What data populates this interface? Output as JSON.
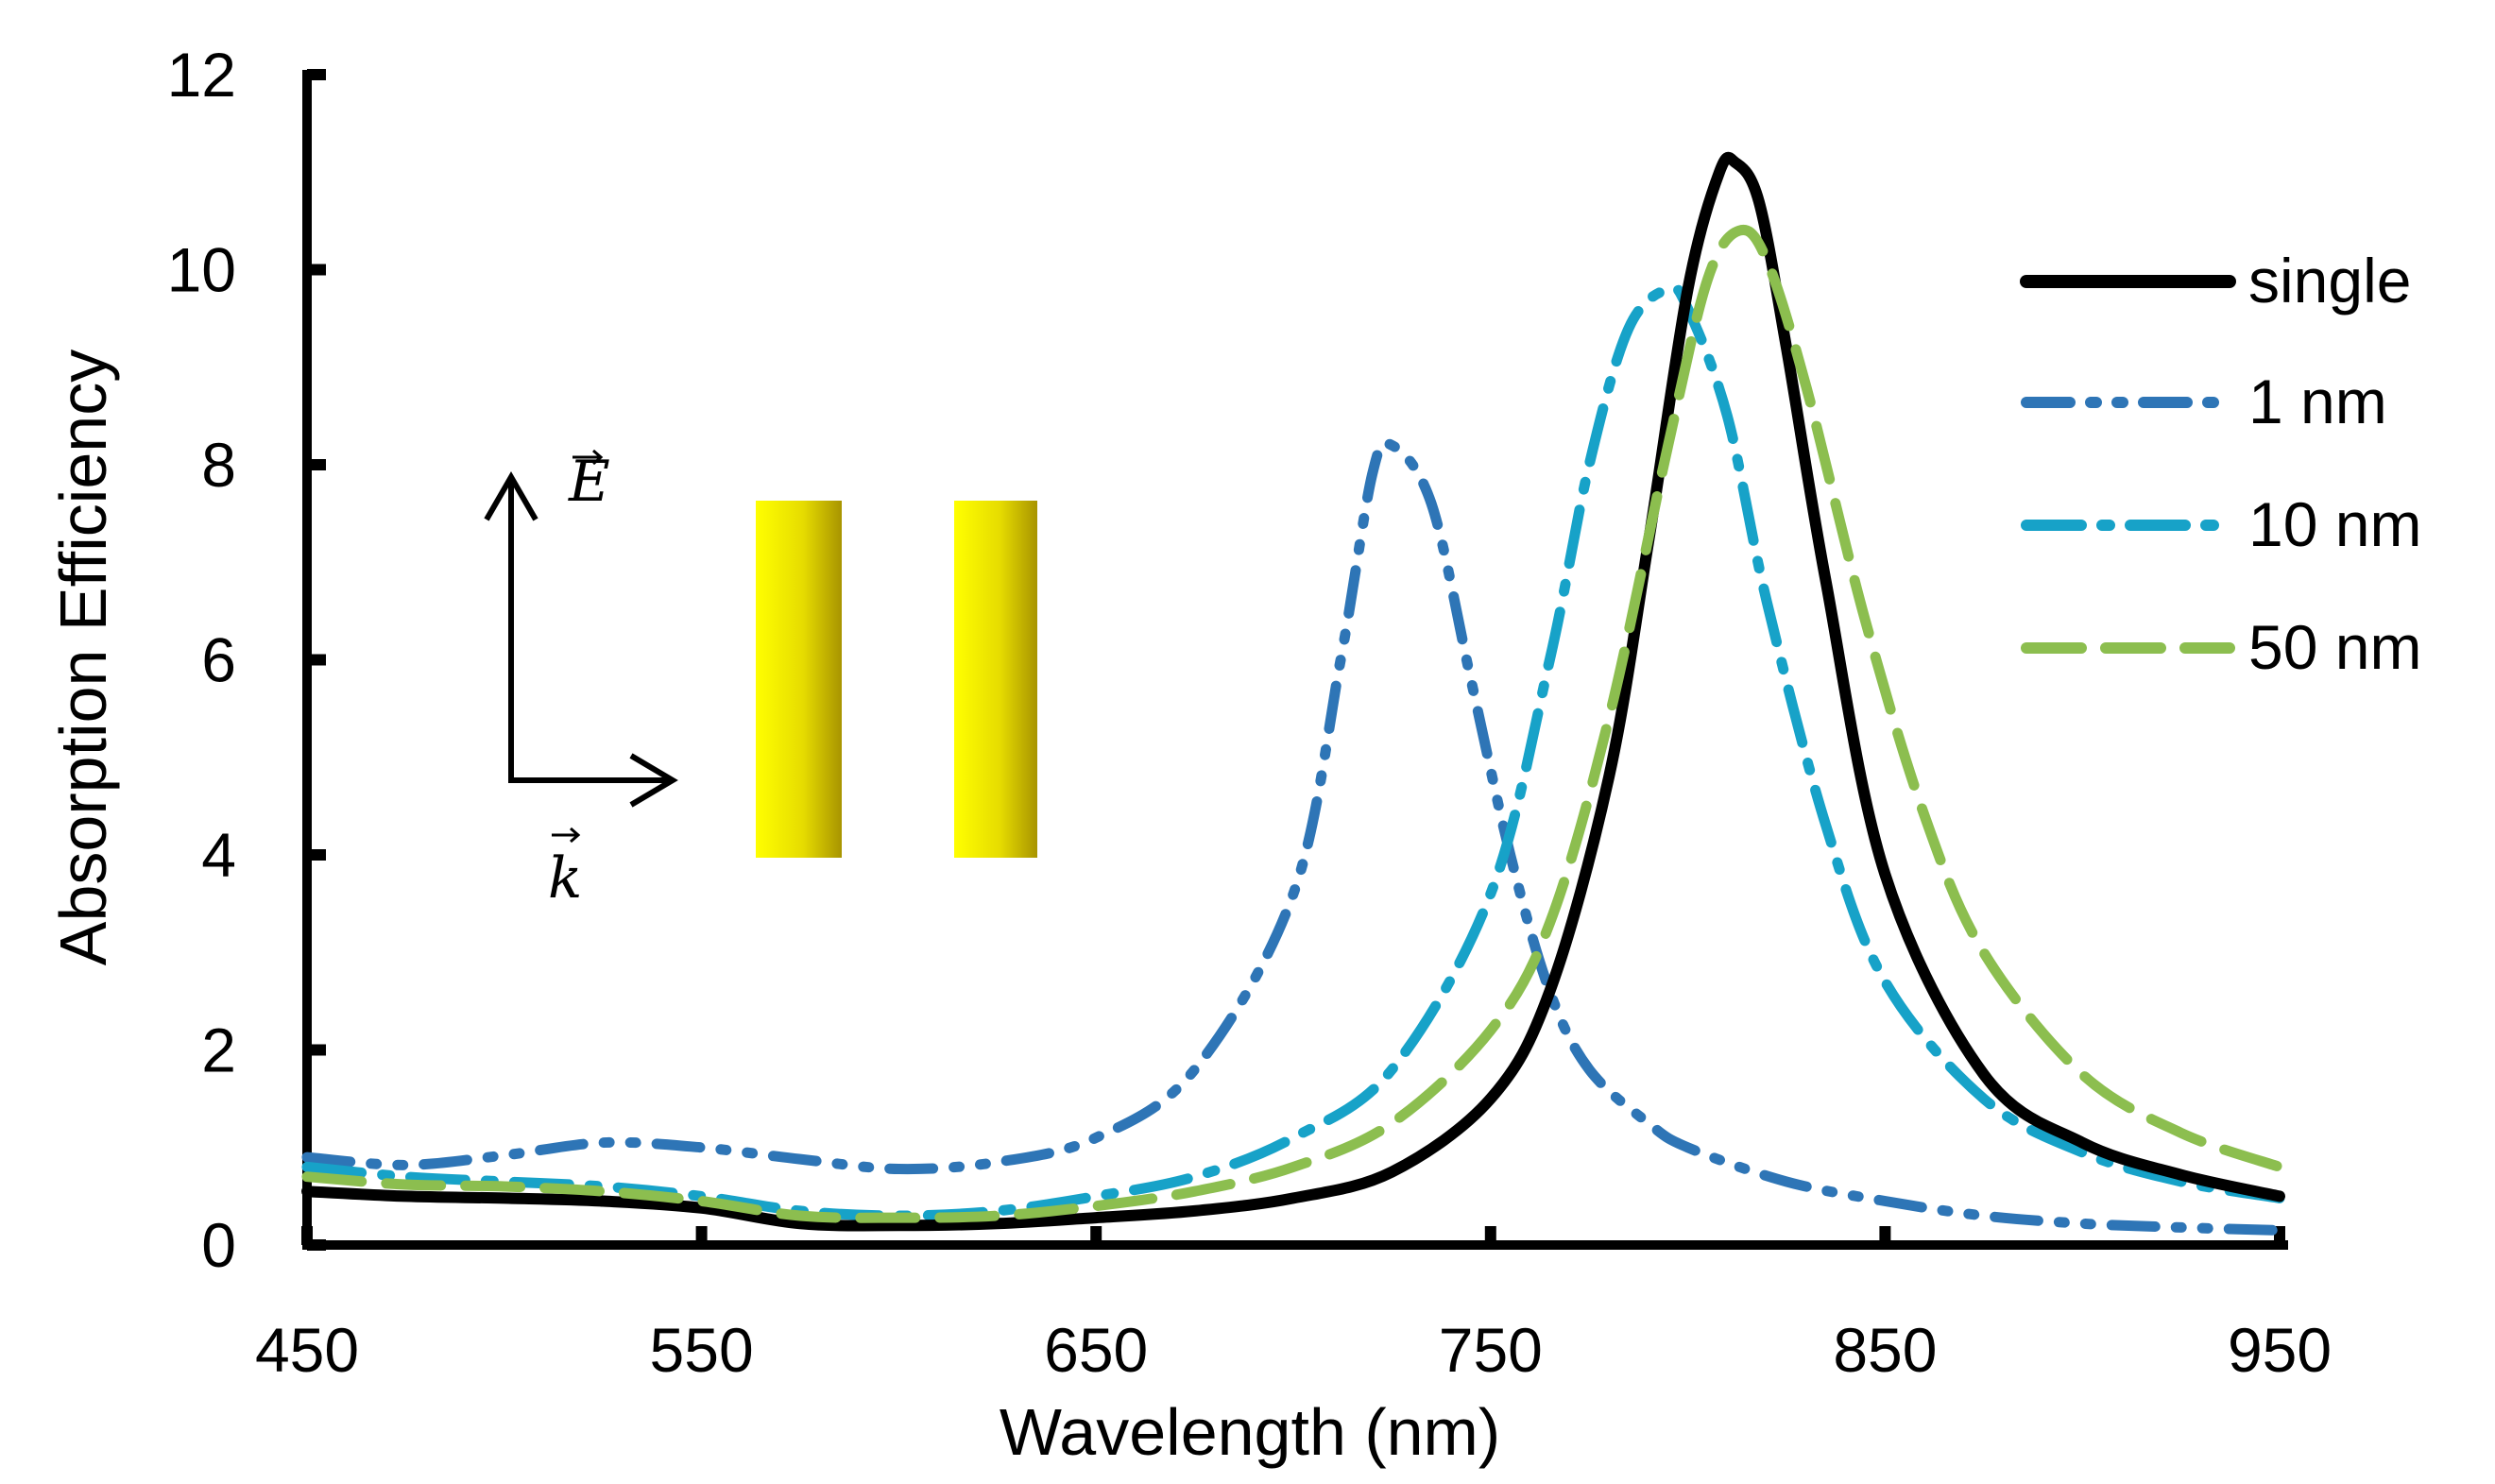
{
  "chart_data": {
    "type": "line",
    "title": "",
    "xlabel": "Wavelength (nm)",
    "ylabel": "Absorption Efficiency",
    "xlim": [
      450,
      950
    ],
    "ylim": [
      0,
      12
    ],
    "xticks": [
      450,
      550,
      650,
      750,
      850,
      950
    ],
    "yticks": [
      0,
      2,
      4,
      6,
      8,
      10,
      12
    ],
    "grid": false,
    "legend_position": "right",
    "series": [
      {
        "name": "single",
        "color": "#000000",
        "style": "solid",
        "x": [
          450,
          475,
          500,
          525,
          550,
          575,
          600,
          625,
          650,
          675,
          700,
          725,
          750,
          765,
          780,
          790,
          800,
          808,
          812,
          818,
          825,
          835,
          850,
          875,
          900,
          925,
          950
        ],
        "y": [
          0.55,
          0.5,
          0.48,
          0.45,
          0.38,
          0.22,
          0.2,
          0.22,
          0.28,
          0.35,
          0.48,
          0.75,
          1.5,
          2.6,
          4.8,
          7.2,
          9.8,
          11.0,
          11.1,
          10.7,
          9.2,
          6.8,
          3.8,
          1.75,
          1.05,
          0.72,
          0.5
        ]
      },
      {
        "name": "1 nm",
        "color": "#2e75b6",
        "style": "dash-dot-dot",
        "x": [
          450,
          475,
          500,
          525,
          550,
          575,
          600,
          625,
          650,
          675,
          700,
          712,
          720,
          725,
          735,
          745,
          755,
          765,
          775,
          790,
          800,
          825,
          850,
          875,
          900,
          925,
          950
        ],
        "y": [
          0.9,
          0.82,
          0.92,
          1.05,
          1.0,
          0.88,
          0.78,
          0.85,
          1.1,
          1.8,
          3.6,
          6.0,
          7.9,
          8.2,
          7.6,
          5.8,
          4.0,
          2.6,
          1.8,
          1.25,
          1.0,
          0.65,
          0.45,
          0.3,
          0.22,
          0.18,
          0.15
        ]
      },
      {
        "name": "10 nm",
        "color": "#17a2c8",
        "style": "dash-dot",
        "x": [
          450,
          475,
          500,
          525,
          550,
          575,
          600,
          625,
          650,
          675,
          700,
          725,
          750,
          765,
          775,
          785,
          795,
          800,
          810,
          820,
          835,
          850,
          875,
          900,
          925,
          950
        ],
        "y": [
          0.8,
          0.7,
          0.65,
          0.6,
          0.5,
          0.35,
          0.3,
          0.35,
          0.5,
          0.7,
          1.1,
          1.8,
          3.6,
          6.0,
          8.0,
          9.4,
          9.8,
          9.6,
          8.5,
          6.6,
          4.3,
          2.7,
          1.5,
          0.95,
          0.65,
          0.48
        ]
      },
      {
        "name": "50 nm",
        "color": "#8cbe4f",
        "style": "dashed",
        "x": [
          450,
          475,
          500,
          525,
          550,
          575,
          600,
          625,
          650,
          675,
          700,
          725,
          750,
          765,
          780,
          795,
          805,
          813,
          820,
          830,
          845,
          860,
          875,
          900,
          925,
          950
        ],
        "y": [
          0.7,
          0.62,
          0.6,
          0.55,
          0.45,
          0.3,
          0.28,
          0.3,
          0.4,
          0.55,
          0.8,
          1.25,
          2.2,
          3.3,
          5.4,
          8.2,
          9.9,
          10.4,
          10.1,
          8.8,
          6.4,
          4.4,
          3.0,
          1.75,
          1.15,
          0.8
        ]
      }
    ],
    "inset_labels": {
      "e_field": "E",
      "k_vector": "k"
    }
  }
}
